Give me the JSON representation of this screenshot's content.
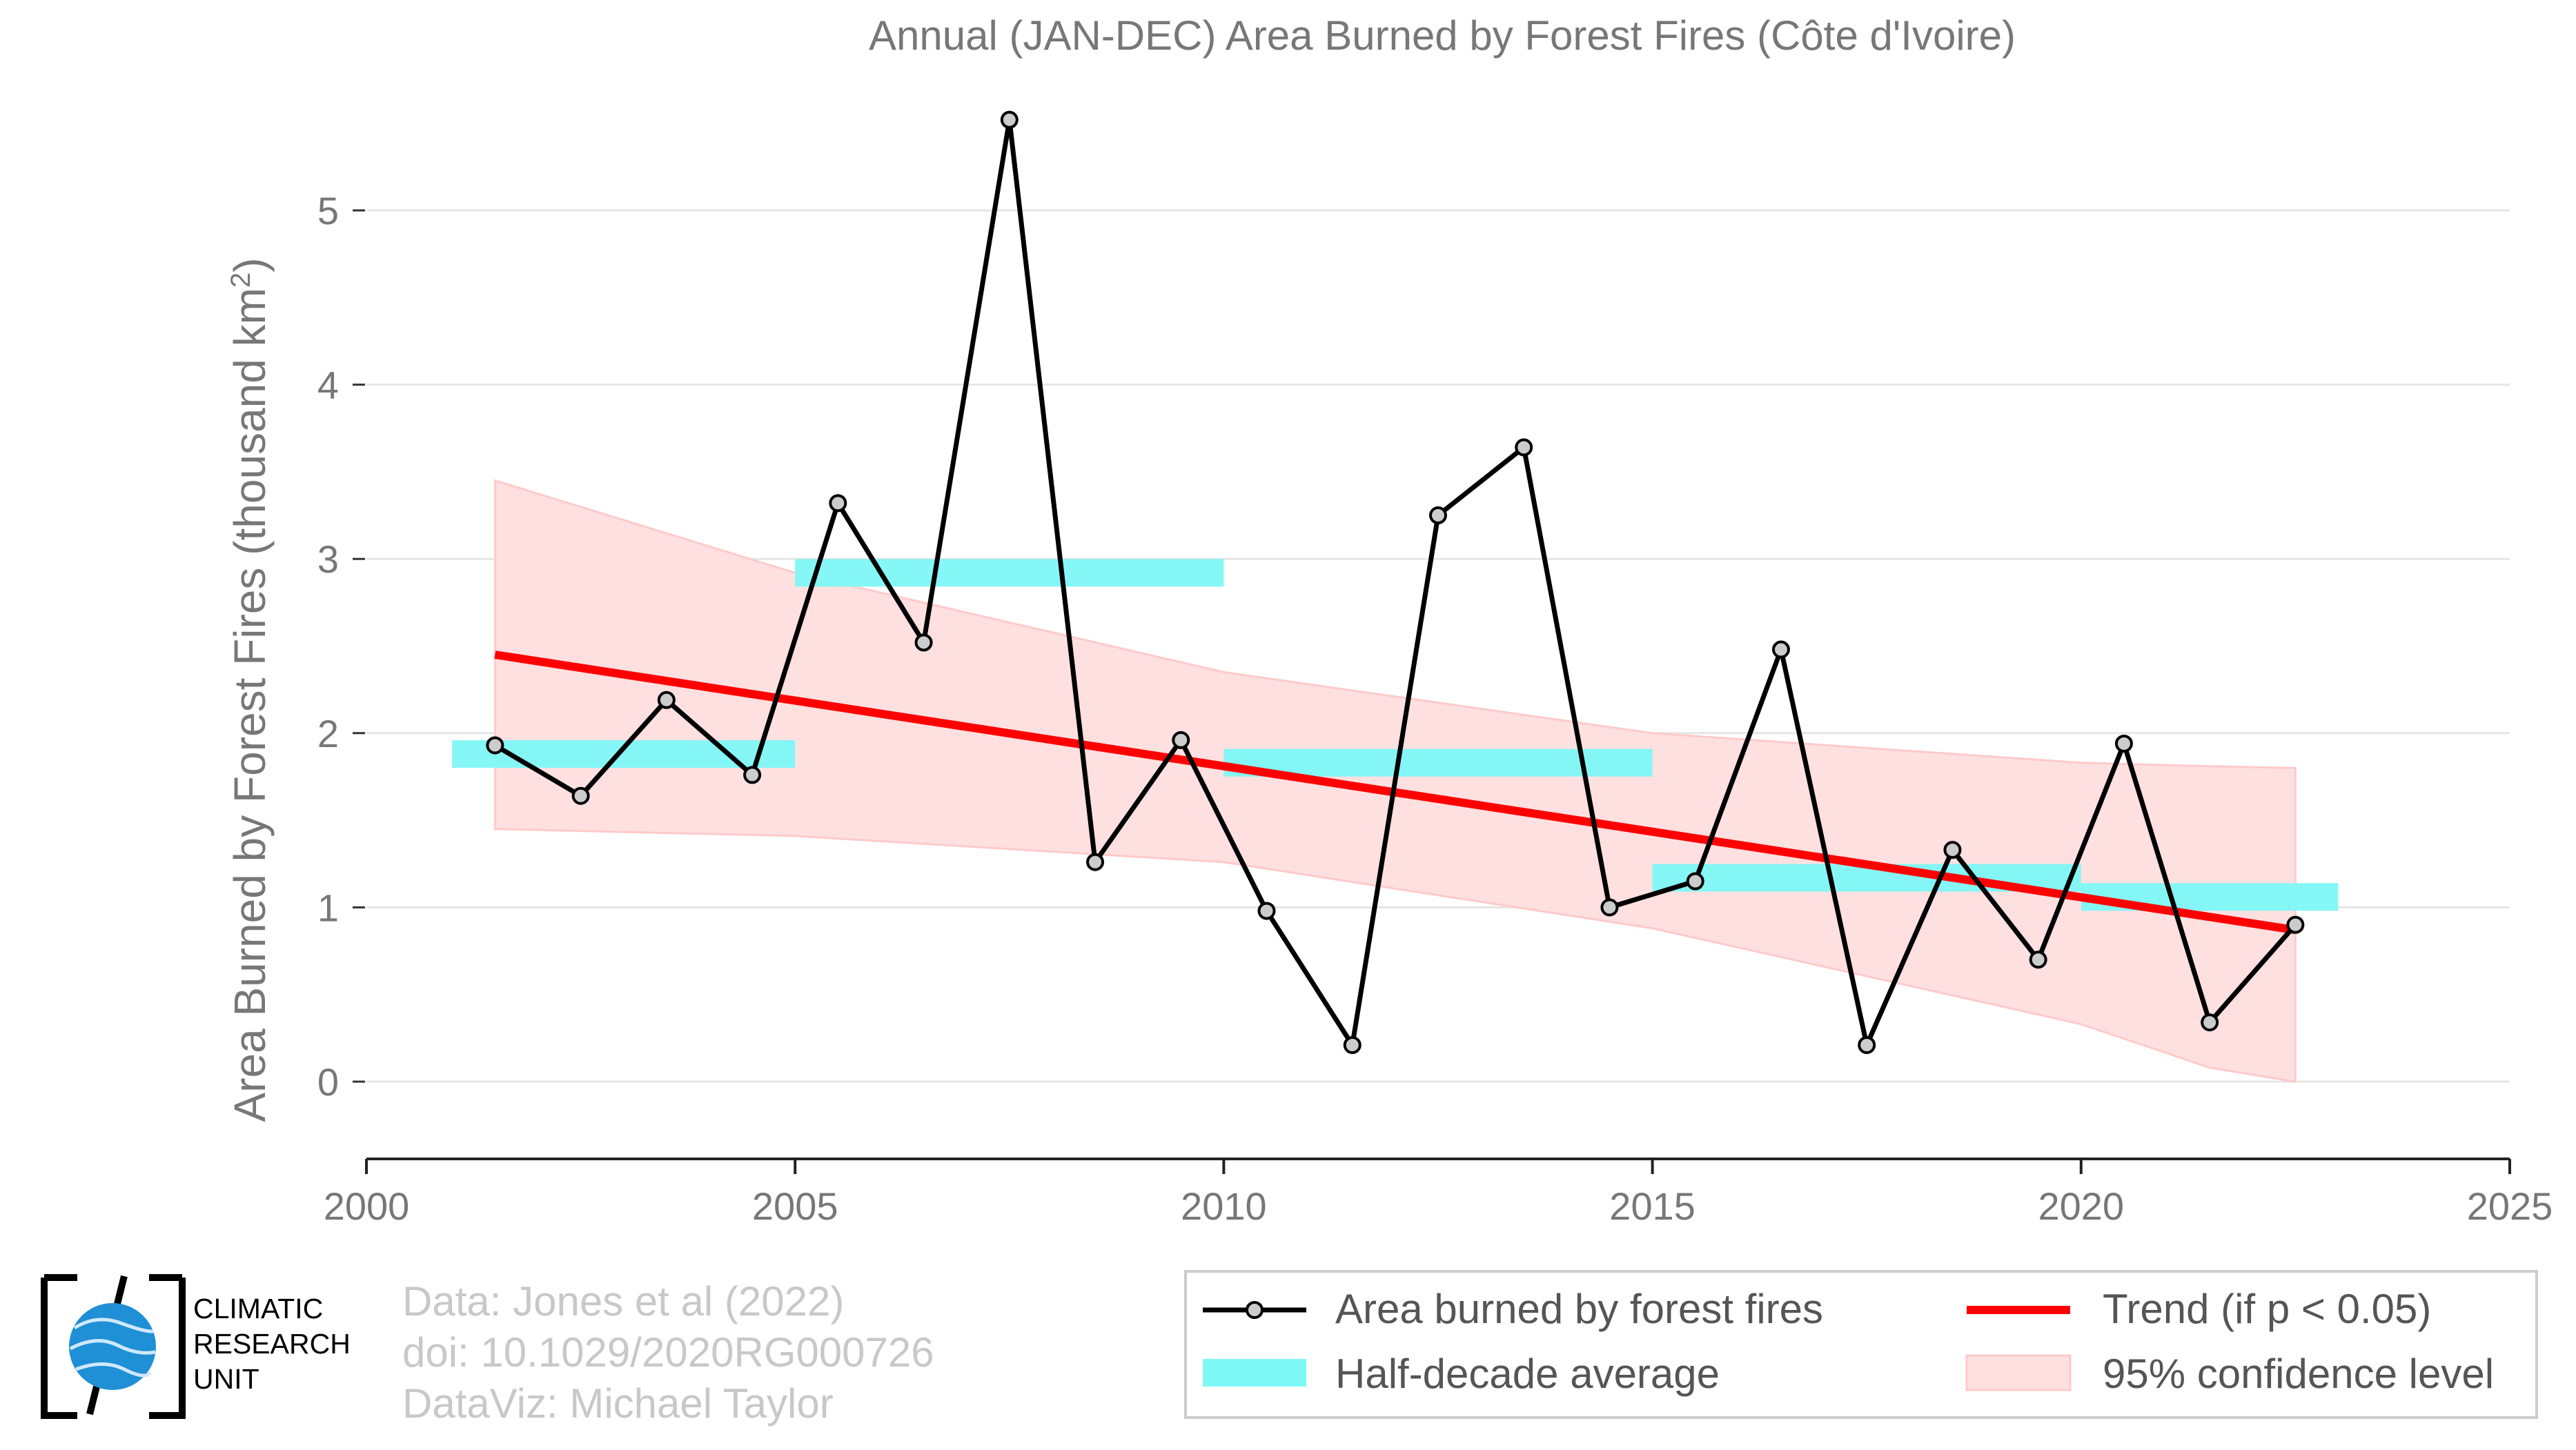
{
  "chart_data": {
    "type": "line",
    "title": "Annual (JAN-DEC) Area Burned by Forest Fires (Côte d'Ivoire)",
    "xlabel": "",
    "ylabel": "Area Burned by Forest Fires (thousand km",
    "ylabel_superscript": "2",
    "ylabel_suffix": ")",
    "xlim": [
      2000,
      2025
    ],
    "ylim": [
      0,
      5.5
    ],
    "xticks": [
      2000,
      2005,
      2010,
      2015,
      2020,
      2025
    ],
    "yticks": [
      0,
      1,
      2,
      3,
      4,
      5
    ],
    "grid": true,
    "legend_placement": "bottom-right",
    "series": [
      {
        "name": "Area burned by forest fires",
        "color": "#000000",
        "marker_fill": "#cccccc",
        "x": [
          2001.5,
          2002.5,
          2003.5,
          2004.5,
          2005.5,
          2006.5,
          2007.5,
          2008.5,
          2009.5,
          2010.5,
          2011.5,
          2012.5,
          2013.5,
          2014.5,
          2015.5,
          2016.5,
          2017.5,
          2018.5,
          2019.5,
          2020.5,
          2021.5,
          2022.5
        ],
        "y": [
          1.93,
          1.64,
          2.19,
          1.76,
          3.32,
          2.52,
          5.52,
          1.26,
          1.96,
          0.98,
          0.21,
          3.25,
          3.64,
          1.0,
          1.15,
          2.48,
          0.21,
          1.33,
          0.7,
          1.94,
          0.34,
          0.9
        ]
      },
      {
        "name": "Half-decade average",
        "color": "#7ef7f7",
        "segments": [
          {
            "x0": 2001,
            "x1": 2005,
            "y": 1.88
          },
          {
            "x0": 2005,
            "x1": 2010,
            "y": 2.92
          },
          {
            "x0": 2010,
            "x1": 2015,
            "y": 1.83
          },
          {
            "x0": 2015,
            "x1": 2020,
            "y": 1.17
          },
          {
            "x0": 2020,
            "x1": 2023,
            "y": 1.06
          }
        ]
      },
      {
        "name": "Trend (if p < 0.05)",
        "color": "#ff0000",
        "x": [
          2001.5,
          2022.5
        ],
        "y": [
          2.45,
          0.87
        ]
      },
      {
        "name": "95% confidence level",
        "color": "#ffe0e0",
        "x": [
          2001.5,
          2005,
          2010,
          2015,
          2020,
          2021.5,
          2022.5
        ],
        "upper": [
          3.45,
          2.92,
          2.35,
          2.0,
          1.83,
          1.81,
          1.8
        ],
        "lower": [
          1.45,
          1.41,
          1.26,
          0.88,
          0.33,
          0.08,
          0.0
        ]
      }
    ]
  },
  "logo": {
    "line1": "CLIMATIC",
    "line2": "RESEARCH",
    "line3": "UNIT"
  },
  "credits": {
    "line1": "Data: Jones et al (2022)",
    "line2": "doi: 10.1029/2020RG000726",
    "line3": "DataViz: Michael Taylor"
  }
}
